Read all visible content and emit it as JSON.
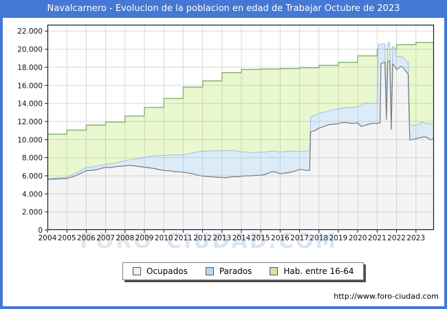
{
  "title": "Navalcarnero - Evolucion de la poblacion en edad de Trabajar Octubre de 2023",
  "credit_url": "http://www.foro-ciudad.com",
  "watermark": {
    "word1": "FORO",
    "word2": "CIUDAD.COM"
  },
  "legend": {
    "items": [
      {
        "id": "ocupados",
        "label": "Ocupados",
        "swatch_color": "#efefef"
      },
      {
        "id": "parados",
        "label": "Parados",
        "swatch_color": "#bdd7ee"
      },
      {
        "id": "hab",
        "label": "Hab. entre 16-64",
        "swatch_color": "#c9ea9c"
      }
    ]
  },
  "colors": {
    "frame_blue": "#4478d4",
    "plot_border": "#1a1a1a",
    "grid": "rgba(170,170,170,0.45)",
    "hab_fill": "#e9f8cf",
    "hab_line": "#85b56c",
    "parados_fill": "#dcebf8",
    "parados_line": "#a5c6e8",
    "ocupados_fill": "#f4f4f4",
    "ocupados_line": "#777777",
    "axis_text": "#111111",
    "watermark_gray": "#e3e6ea",
    "watermark_blue": "#d9e5f3"
  },
  "chart_data": {
    "type": "area",
    "stacked": true,
    "title": "Navalcarnero - Evolucion de la poblacion en edad de Trabajar Octubre de 2023",
    "xlabel": "",
    "ylabel": "",
    "grid": true,
    "legend_position": "bottom",
    "xlim": [
      2004,
      2023.93
    ],
    "ylim": [
      0,
      22700
    ],
    "x_ticks": [
      2004,
      2005,
      2006,
      2007,
      2008,
      2009,
      2010,
      2011,
      2012,
      2013,
      2014,
      2015,
      2016,
      2017,
      2018,
      2019,
      2020,
      2021,
      2022,
      2023
    ],
    "y_ticks": [
      0,
      2000,
      4000,
      6000,
      8000,
      10000,
      12000,
      14000,
      16000,
      18000,
      20000,
      22000
    ],
    "y_tick_labels": [
      "0",
      "2.000",
      "4.000",
      "6.000",
      "8.000",
      "10.000",
      "12.000",
      "14.000",
      "16.000",
      "18.000",
      "20.000",
      "22.000"
    ],
    "x": [
      2004.0,
      2004.25,
      2004.5,
      2004.75,
      2005.0,
      2005.25,
      2005.5,
      2005.75,
      2006.0,
      2006.25,
      2006.5,
      2006.75,
      2007.0,
      2007.25,
      2007.5,
      2007.75,
      2008.0,
      2008.25,
      2008.5,
      2008.75,
      2009.0,
      2009.25,
      2009.5,
      2009.75,
      2010.0,
      2010.25,
      2010.5,
      2010.75,
      2011.0,
      2011.25,
      2011.5,
      2011.75,
      2012.0,
      2012.25,
      2012.5,
      2012.75,
      2013.0,
      2013.2,
      2013.4,
      2013.6,
      2013.8,
      2014.0,
      2014.25,
      2014.5,
      2014.75,
      2015.0,
      2015.25,
      2015.5,
      2015.7,
      2015.85,
      2016.0,
      2016.25,
      2016.5,
      2016.75,
      2017.0,
      2017.2,
      2017.42,
      2017.52,
      2017.57,
      2017.75,
      2018.0,
      2018.25,
      2018.5,
      2018.75,
      2019.0,
      2019.25,
      2019.5,
      2019.75,
      2020.0,
      2020.17,
      2020.33,
      2020.5,
      2020.67,
      2020.83,
      2021.0,
      2021.06,
      2021.15,
      2021.2,
      2021.3,
      2021.4,
      2021.48,
      2021.55,
      2021.65,
      2021.73,
      2021.8,
      2021.9,
      2022.0,
      2022.12,
      2022.25,
      2022.37,
      2022.5,
      2022.6,
      2022.68,
      2022.8,
      2022.92,
      2023.0,
      2023.15,
      2023.3,
      2023.45,
      2023.6,
      2023.75,
      2023.92
    ],
    "series": [
      {
        "name": "Ocupados",
        "values": [
          5600,
          5620,
          5650,
          5670,
          5700,
          5850,
          6050,
          6300,
          6550,
          6600,
          6650,
          6800,
          6950,
          6900,
          7000,
          7050,
          7100,
          7150,
          7100,
          7020,
          6950,
          6880,
          6800,
          6680,
          6580,
          6550,
          6480,
          6430,
          6400,
          6320,
          6200,
          6080,
          5950,
          5920,
          5870,
          5840,
          5820,
          5780,
          5850,
          5900,
          5880,
          5950,
          6000,
          5990,
          6040,
          6060,
          6150,
          6400,
          6450,
          6350,
          6220,
          6300,
          6380,
          6500,
          6700,
          6660,
          6580,
          6600,
          10880,
          10950,
          11260,
          11450,
          11640,
          11700,
          11760,
          11900,
          11850,
          11780,
          11850,
          11450,
          11550,
          11650,
          11750,
          11820,
          11760,
          11800,
          11850,
          18350,
          18500,
          18550,
          12200,
          18650,
          18700,
          11100,
          18350,
          18150,
          17750,
          17950,
          18100,
          17900,
          17500,
          17250,
          9950,
          10000,
          10050,
          10100,
          10180,
          10260,
          10300,
          10200,
          9960,
          10120
        ]
      },
      {
        "name": "Parados",
        "values": [
          60,
          80,
          90,
          110,
          150,
          250,
          300,
          330,
          370,
          350,
          380,
          360,
          330,
          400,
          430,
          480,
          580,
          620,
          750,
          900,
          1060,
          1250,
          1400,
          1550,
          1640,
          1750,
          1820,
          1880,
          1900,
          2100,
          2350,
          2550,
          2780,
          2800,
          2880,
          2920,
          2950,
          3000,
          2950,
          2870,
          2840,
          2700,
          2620,
          2570,
          2520,
          2550,
          2480,
          2300,
          2280,
          2320,
          2400,
          2360,
          2320,
          2250,
          1950,
          2060,
          2160,
          2150,
          1640,
          1700,
          1640,
          1560,
          1510,
          1620,
          1650,
          1580,
          1700,
          1760,
          1760,
          2300,
          2480,
          2380,
          2280,
          2180,
          2150,
          8750,
          8700,
          2200,
          2100,
          2050,
          1750,
          2000,
          2050,
          1300,
          1950,
          2000,
          1400,
          1250,
          1100,
          1080,
          1200,
          1320,
          1700,
          1550,
          1500,
          1460,
          1520,
          1640,
          1560,
          1520,
          1790,
          1600
        ]
      },
      {
        "name": "Hab. entre 16-64",
        "step_by_year": true,
        "years": [
          2004,
          2005,
          2006,
          2007,
          2008,
          2009,
          2010,
          2011,
          2012,
          2013,
          2014,
          2015,
          2016,
          2017,
          2018,
          2019,
          2020,
          2021,
          2022,
          2023
        ],
        "values": [
          10600,
          11050,
          11600,
          11950,
          12600,
          13550,
          14550,
          15800,
          16500,
          17400,
          17750,
          17800,
          17850,
          17950,
          18200,
          18550,
          19250,
          20000,
          20500,
          20750
        ]
      }
    ]
  }
}
